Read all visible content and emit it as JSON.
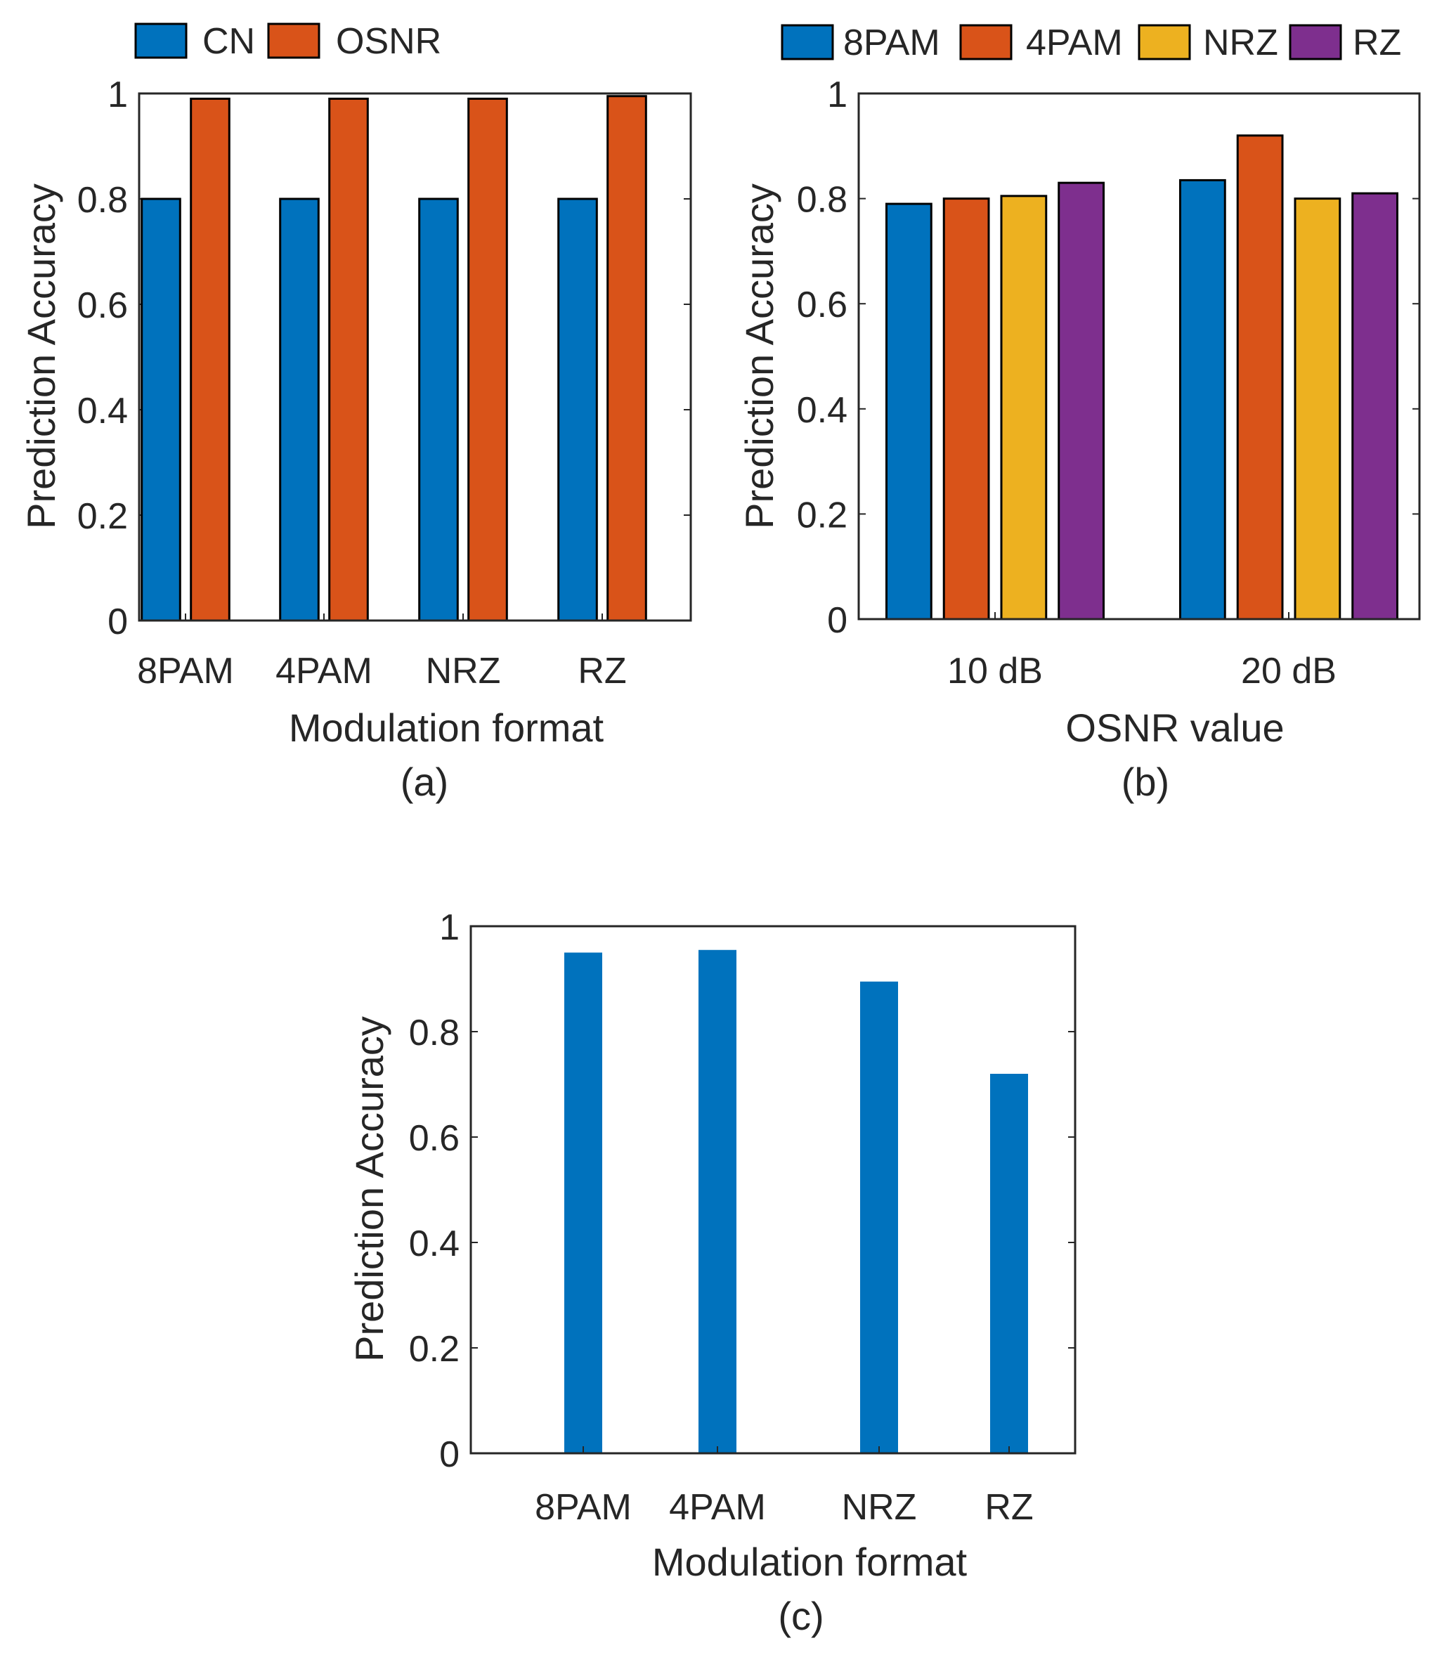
{
  "chart_data": [
    {
      "type": "bar",
      "caption": "(a)",
      "categories": [
        "8PAM",
        "4PAM",
        "NRZ",
        "RZ"
      ],
      "series": [
        {
          "name": "CN",
          "values": [
            0.8,
            0.8,
            0.8,
            0.8
          ],
          "color": "#0072BD"
        },
        {
          "name": "OSNR",
          "values": [
            0.99,
            0.99,
            0.99,
            0.995
          ],
          "color": "#D95319"
        }
      ],
      "xlabel": "Modulation format",
      "ylabel": "Prediction Accuracy",
      "ylim": [
        0,
        1
      ],
      "yticks": [
        "0",
        "0.2",
        "0.4",
        "0.6",
        "0.8",
        "1"
      ],
      "bar_outline": true,
      "legend_position": "top"
    },
    {
      "type": "bar",
      "caption": "(b)",
      "categories": [
        "10 dB",
        "20 dB"
      ],
      "series": [
        {
          "name": "8PAM",
          "values": [
            0.79,
            0.835
          ],
          "color": "#0072BD"
        },
        {
          "name": "4PAM",
          "values": [
            0.8,
            0.92
          ],
          "color": "#D95319"
        },
        {
          "name": "NRZ",
          "values": [
            0.805,
            0.8
          ],
          "color": "#EDB120"
        },
        {
          "name": "RZ",
          "values": [
            0.83,
            0.81
          ],
          "color": "#7E2F8E"
        }
      ],
      "xlabel": "OSNR value",
      "ylabel": "Prediction Accuracy",
      "ylim": [
        0,
        1
      ],
      "yticks": [
        "0",
        "0.2",
        "0.4",
        "0.6",
        "0.8",
        "1"
      ],
      "bar_outline": true,
      "legend_position": "top"
    },
    {
      "type": "bar",
      "caption": "(c)",
      "categories": [
        "8PAM",
        "4PAM",
        "NRZ",
        "RZ"
      ],
      "series": [
        {
          "values": [
            0.95,
            0.955,
            0.895,
            0.72
          ],
          "color": "#0072BD"
        }
      ],
      "xlabel": "Modulation format",
      "ylabel": "Prediction Accuracy",
      "ylim": [
        0,
        1
      ],
      "yticks": [
        "0",
        "0.2",
        "0.4",
        "0.6",
        "0.8",
        "1"
      ],
      "bar_outline": false
    }
  ]
}
